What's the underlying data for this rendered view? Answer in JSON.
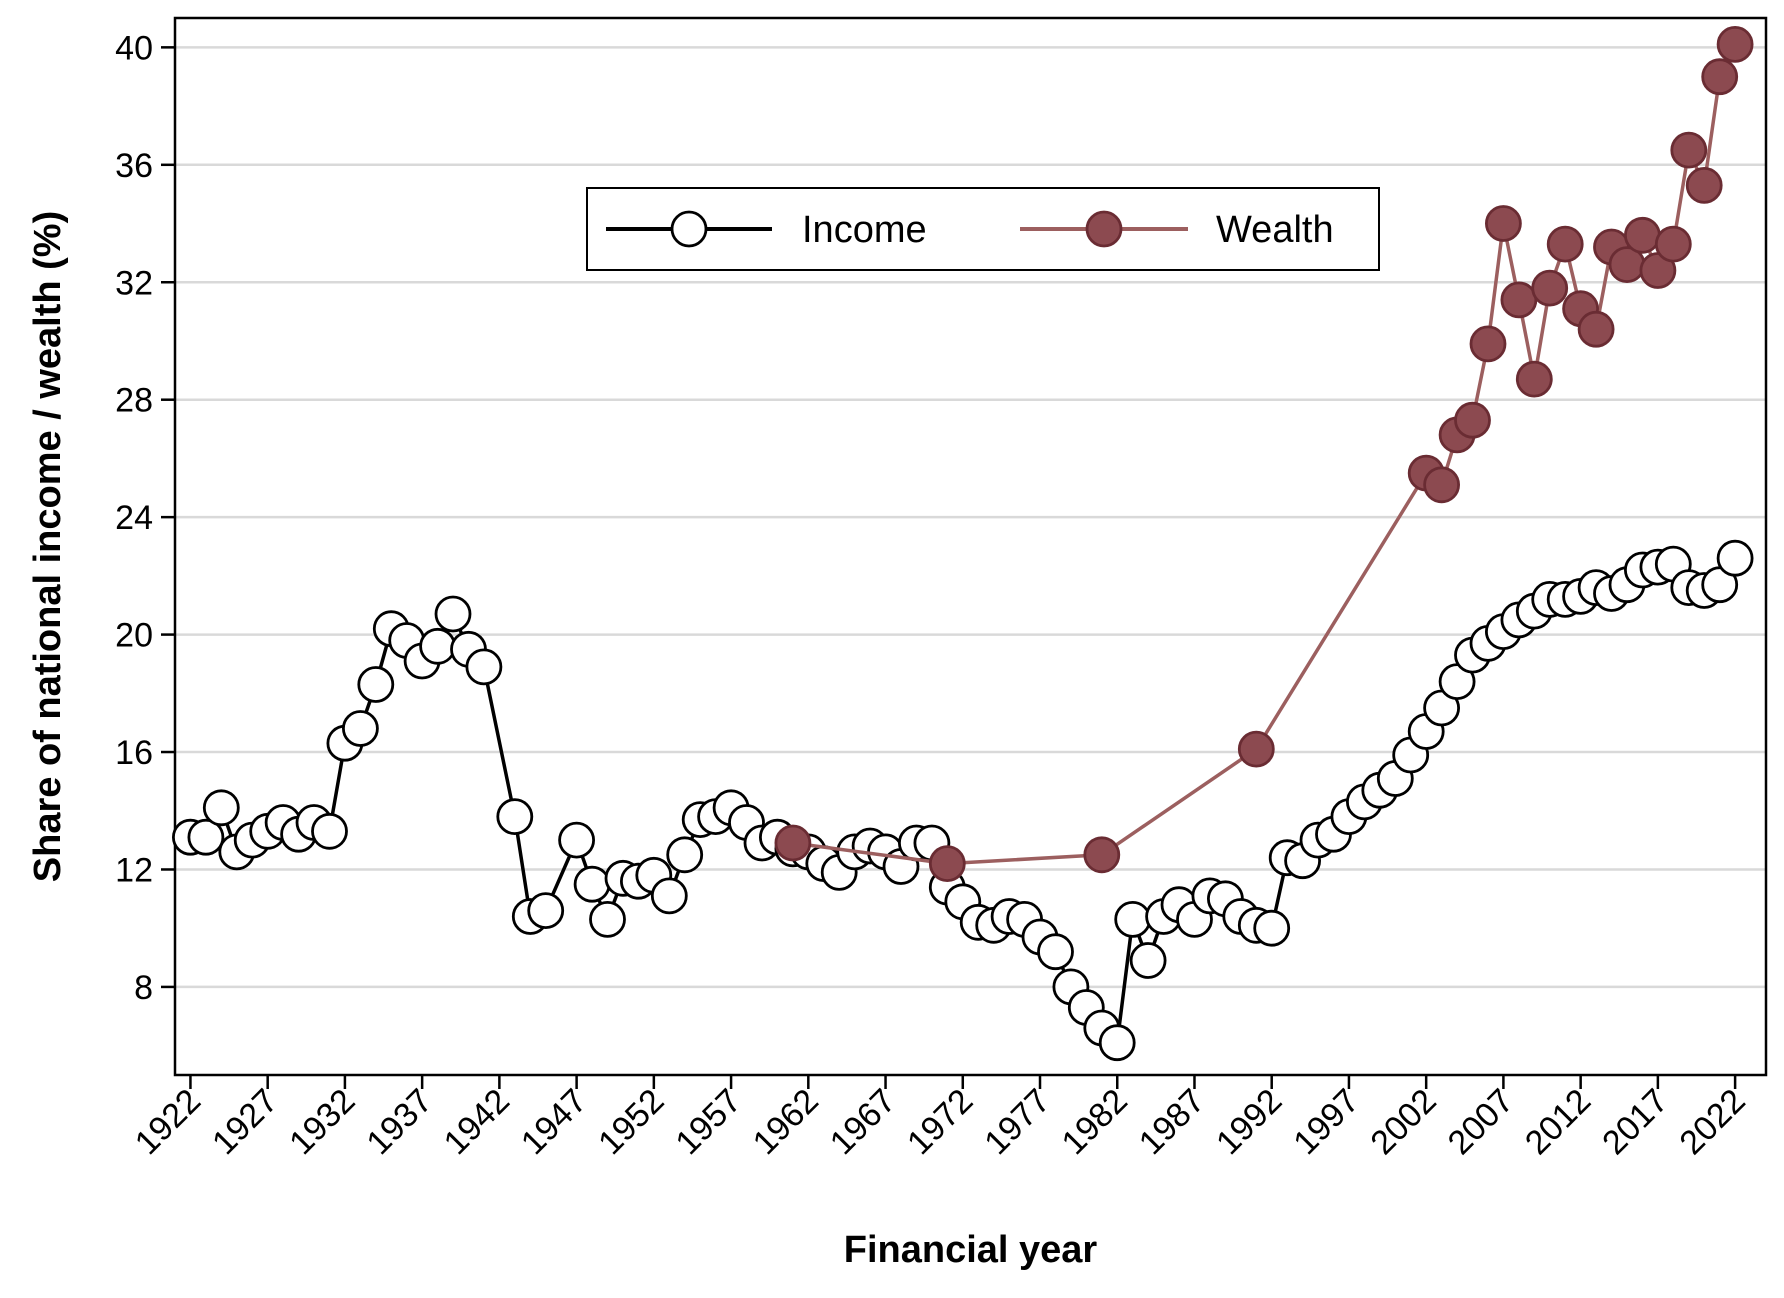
{
  "chart_data": {
    "type": "line",
    "title": "",
    "xlabel": "Financial year",
    "ylabel": "Share of national income / wealth (%)",
    "xlim": [
      1921,
      2024
    ],
    "ylim": [
      5,
      41
    ],
    "yticks": [
      8,
      12,
      16,
      20,
      24,
      28,
      32,
      36,
      40
    ],
    "xticks": [
      1922,
      1927,
      1932,
      1937,
      1942,
      1947,
      1952,
      1957,
      1962,
      1967,
      1972,
      1977,
      1982,
      1987,
      1992,
      1997,
      2002,
      2007,
      2012,
      2017,
      2022
    ],
    "grid": "horizontal",
    "legend_position": "top-center",
    "series": [
      {
        "name": "Income",
        "line_color": "#000000",
        "marker_fill": "#ffffff",
        "marker_edge": "#000000",
        "points": [
          [
            1922,
            13.1
          ],
          [
            1923,
            13.1
          ],
          [
            1924,
            14.1
          ],
          [
            1925,
            12.6
          ],
          [
            1926,
            13.0
          ],
          [
            1927,
            13.3
          ],
          [
            1928,
            13.6
          ],
          [
            1929,
            13.2
          ],
          [
            1930,
            13.6
          ],
          [
            1931,
            13.3
          ],
          [
            1932,
            16.3
          ],
          [
            1933,
            16.8
          ],
          [
            1934,
            18.3
          ],
          [
            1935,
            20.2
          ],
          [
            1936,
            19.8
          ],
          [
            1937,
            19.1
          ],
          [
            1938,
            19.6
          ],
          [
            1939,
            20.7
          ],
          [
            1940,
            19.5
          ],
          [
            1941,
            18.9
          ],
          [
            1943,
            13.8
          ],
          [
            1944,
            10.4
          ],
          [
            1945,
            10.6
          ],
          [
            1947,
            13.0
          ],
          [
            1948,
            11.5
          ],
          [
            1949,
            10.3
          ],
          [
            1950,
            11.7
          ],
          [
            1951,
            11.6
          ],
          [
            1952,
            11.8
          ],
          [
            1953,
            11.1
          ],
          [
            1954,
            12.5
          ],
          [
            1955,
            13.7
          ],
          [
            1956,
            13.8
          ],
          [
            1957,
            14.1
          ],
          [
            1958,
            13.6
          ],
          [
            1959,
            12.9
          ],
          [
            1960,
            13.1
          ],
          [
            1961,
            12.7
          ],
          [
            1962,
            12.6
          ],
          [
            1963,
            12.2
          ],
          [
            1964,
            11.9
          ],
          [
            1965,
            12.6
          ],
          [
            1966,
            12.8
          ],
          [
            1967,
            12.6
          ],
          [
            1968,
            12.1
          ],
          [
            1969,
            12.9
          ],
          [
            1970,
            12.9
          ],
          [
            1971,
            11.4
          ],
          [
            1972,
            10.9
          ],
          [
            1973,
            10.2
          ],
          [
            1974,
            10.1
          ],
          [
            1975,
            10.4
          ],
          [
            1976,
            10.3
          ],
          [
            1977,
            9.7
          ],
          [
            1978,
            9.2
          ],
          [
            1979,
            8.0
          ],
          [
            1980,
            7.3
          ],
          [
            1981,
            6.6
          ],
          [
            1982,
            6.1
          ],
          [
            1983,
            10.3
          ],
          [
            1984,
            8.9
          ],
          [
            1985,
            10.4
          ],
          [
            1986,
            10.8
          ],
          [
            1987,
            10.3
          ],
          [
            1988,
            11.1
          ],
          [
            1989,
            11.0
          ],
          [
            1990,
            10.4
          ],
          [
            1991,
            10.1
          ],
          [
            1992,
            10.0
          ],
          [
            1993,
            12.4
          ],
          [
            1994,
            12.3
          ],
          [
            1995,
            13.0
          ],
          [
            1996,
            13.2
          ],
          [
            1997,
            13.8
          ],
          [
            1998,
            14.3
          ],
          [
            1999,
            14.7
          ],
          [
            2000,
            15.1
          ],
          [
            2001,
            15.9
          ],
          [
            2002,
            16.7
          ],
          [
            2003,
            17.5
          ],
          [
            2004,
            18.4
          ],
          [
            2005,
            19.3
          ],
          [
            2006,
            19.7
          ],
          [
            2007,
            20.1
          ],
          [
            2008,
            20.5
          ],
          [
            2009,
            20.8
          ],
          [
            2010,
            21.2
          ],
          [
            2011,
            21.2
          ],
          [
            2012,
            21.3
          ],
          [
            2013,
            21.6
          ],
          [
            2014,
            21.4
          ],
          [
            2015,
            21.7
          ],
          [
            2016,
            22.2
          ],
          [
            2017,
            22.3
          ],
          [
            2018,
            22.4
          ],
          [
            2019,
            21.6
          ],
          [
            2020,
            21.5
          ],
          [
            2021,
            21.7
          ],
          [
            2022,
            22.6
          ]
        ]
      },
      {
        "name": "Wealth",
        "line_color": "#9c5f5f",
        "marker_fill": "#8c4a50",
        "marker_edge": "#6a2c33",
        "points": [
          [
            1961,
            12.9
          ],
          [
            1971,
            12.2
          ],
          [
            1981,
            12.5
          ],
          [
            1991,
            16.1
          ],
          [
            2002,
            25.5
          ],
          [
            2003,
            25.1
          ],
          [
            2004,
            26.8
          ],
          [
            2005,
            27.3
          ],
          [
            2006,
            29.9
          ],
          [
            2007,
            34.0
          ],
          [
            2008,
            31.4
          ],
          [
            2009,
            28.7
          ],
          [
            2010,
            31.8
          ],
          [
            2011,
            33.3
          ],
          [
            2012,
            31.1
          ],
          [
            2013,
            30.4
          ],
          [
            2014,
            33.2
          ],
          [
            2015,
            32.6
          ],
          [
            2016,
            33.6
          ],
          [
            2017,
            32.4
          ],
          [
            2018,
            33.3
          ],
          [
            2019,
            36.5
          ],
          [
            2020,
            35.3
          ],
          [
            2021,
            39.0
          ],
          [
            2022,
            40.1
          ]
        ]
      }
    ]
  }
}
